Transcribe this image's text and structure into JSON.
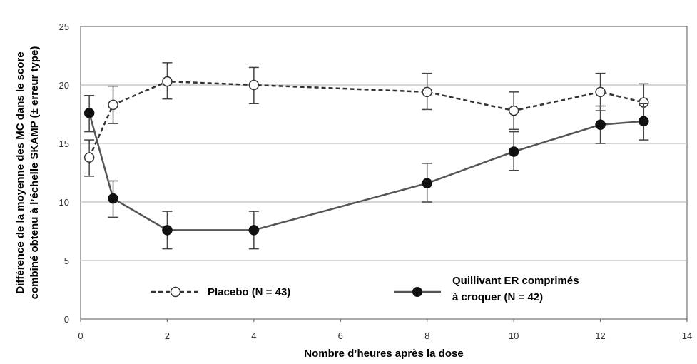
{
  "chart_data": {
    "type": "line",
    "xlabel": "Nombre d’heures après la dose",
    "ylabel_lines": [
      "Différence de la moyenne des MC dans le score",
      "combiné obtenu à l’échelle SKAMP (± erreur type)"
    ],
    "xlim": [
      0,
      14
    ],
    "ylim": [
      0,
      25
    ],
    "x_ticks": [
      0,
      2,
      4,
      6,
      8,
      10,
      12,
      14
    ],
    "y_ticks": [
      0,
      5,
      10,
      15,
      20,
      25
    ],
    "grid": "horizontal",
    "legend_position": "bottom",
    "series": [
      {
        "name": "Placebo (N = 43)",
        "style": "dashed",
        "marker": "open-circle",
        "color": "#333333",
        "x": [
          0.2,
          0.75,
          2,
          4,
          8,
          10,
          12,
          13
        ],
        "y": [
          13.8,
          18.3,
          20.3,
          20.0,
          19.4,
          17.8,
          19.4,
          18.5
        ],
        "err_low": [
          12.2,
          16.7,
          18.8,
          18.4,
          17.9,
          16.2,
          17.8,
          16.9
        ],
        "err_high": [
          15.3,
          19.9,
          21.9,
          21.5,
          21.0,
          19.4,
          21.0,
          20.1
        ]
      },
      {
        "name_lines": [
          "Quillivant ER comprimés",
          "à croquer (N = 42)"
        ],
        "style": "solid",
        "marker": "filled-circle",
        "color": "#555555",
        "x": [
          0.2,
          0.75,
          2,
          4,
          8,
          10,
          12,
          13
        ],
        "y": [
          17.6,
          10.3,
          7.6,
          7.6,
          11.6,
          14.3,
          16.6,
          16.9
        ],
        "err_low": [
          16.0,
          8.7,
          6.0,
          6.0,
          10.0,
          12.7,
          15.0,
          15.3
        ],
        "err_high": [
          19.1,
          11.8,
          9.2,
          9.2,
          13.3,
          16.0,
          18.2,
          18.4
        ]
      }
    ]
  }
}
